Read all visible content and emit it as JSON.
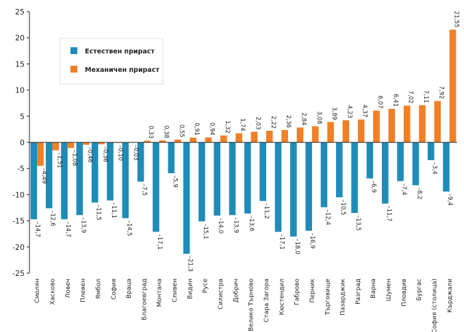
{
  "chart_data": {
    "type": "bar",
    "title": "",
    "xlabel": "",
    "ylabel": "",
    "ylim": [
      -25,
      25
    ],
    "yticks": [
      -25,
      -20,
      -15,
      -10,
      -5,
      0,
      5,
      10,
      15,
      20,
      25
    ],
    "grid": false,
    "legend_position": "top-left",
    "categories": [
      "Смолян",
      "Хасково",
      "Ловеч",
      "Плевен",
      "Ямбол",
      "София",
      "Враца",
      "Благоевград",
      "Монтана",
      "Сливен",
      "Видин",
      "Русе",
      "Силистра",
      "Добрич",
      "Велико Търново",
      "Стара Загора",
      "Кюстендил",
      "Габрово",
      "Перник",
      "Търговище",
      "Пазарджик",
      "Разград",
      "Варна",
      "Шумен",
      "Пловдив",
      "Бургас",
      "София (столица)",
      "Кърджали"
    ],
    "series": [
      {
        "name": "Естествен прираст",
        "color": "#1f8cb8",
        "values": [
          -14.7,
          -12.6,
          -14.7,
          -13.9,
          -11.5,
          -11.1,
          -14.5,
          -7.5,
          -17.1,
          -5.9,
          -21.3,
          -15.1,
          -14.0,
          -13.9,
          -13.6,
          -11.2,
          -17.1,
          -18.0,
          -16.9,
          -12.4,
          -10.5,
          -13.5,
          -6.9,
          -11.7,
          -7.4,
          -8.2,
          -3.4,
          -9.4
        ],
        "labels": [
          "–14,7",
          "–12,6",
          "–14,7",
          "–13,9",
          "–11,5",
          "–11,1",
          "–14,5",
          "–7,5",
          "–17,1",
          "–5,9",
          "–21,3",
          "–15,1",
          "–14,0",
          "–13,9",
          "–13,6",
          "–11,2",
          "–17,1",
          "–18,0",
          "–16,9",
          "–12,4",
          "–10,5",
          "–13,5",
          "–6,9",
          "–11,7",
          "–7,4",
          "–8,2",
          "–3,4",
          "–9,4"
        ]
      },
      {
        "name": "Механичен прираст",
        "color": "#f07f26",
        "values": [
          -4.49,
          -1.51,
          -1.08,
          -0.46,
          -0.36,
          -0.1,
          -0.03,
          0.33,
          0.38,
          0.55,
          0.91,
          0.94,
          1.32,
          1.74,
          2.03,
          2.22,
          2.36,
          2.84,
          3.08,
          3.89,
          4.23,
          4.37,
          6.07,
          6.41,
          7.02,
          7.11,
          7.92,
          21.55
        ],
        "labels": [
          "–4,49",
          "–1,51",
          "–1,08",
          "–0,46",
          "–0,36",
          "–0,10",
          "–0,03",
          "0,33",
          "0,38",
          "0,55",
          "0,91",
          "0,94",
          "1,32",
          "1,74",
          "2,03",
          "2,22",
          "2,36",
          "2,84",
          "3,08",
          "3,89",
          "4,23",
          "4,37",
          "6,07",
          "6,41",
          "7,02",
          "7,11",
          "7,92",
          "21,55"
        ]
      }
    ]
  }
}
